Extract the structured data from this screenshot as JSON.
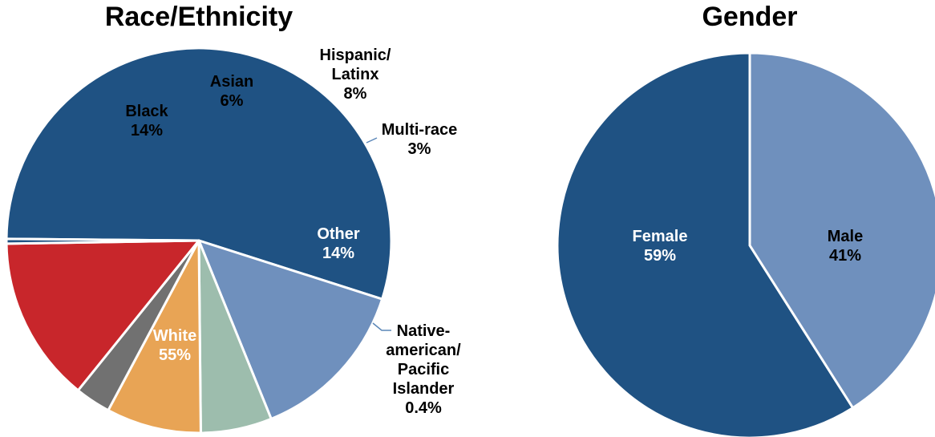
{
  "chart_data": [
    {
      "type": "pie",
      "title": "Race/Ethnicity",
      "slices": [
        {
          "name": "White",
          "value": 55,
          "value_label": "55%",
          "color": "#1f5283",
          "label_color": "#ffffff"
        },
        {
          "name": "Black",
          "value": 14,
          "value_label": "14%",
          "color": "#6f90bd",
          "label_color": "#000000"
        },
        {
          "name": "Asian",
          "value": 6,
          "value_label": "6%",
          "color": "#9dbdad",
          "label_color": "#000000"
        },
        {
          "name": "Hispanic/ Latinx",
          "value": 8,
          "value_label": "8%",
          "color": "#e8a455",
          "label_color": "#000000"
        },
        {
          "name": "Multi-race",
          "value": 3,
          "value_label": "3%",
          "color": "#717171",
          "label_color": "#000000"
        },
        {
          "name": "Other",
          "value": 14,
          "value_label": "14%",
          "color": "#c8262b",
          "label_color": "#ffffff"
        },
        {
          "name": "Native-american/ Pacific Islander",
          "value": 0.4,
          "value_label": "0.4%",
          "color": "#1f5283",
          "label_color": "#000000"
        }
      ]
    },
    {
      "type": "pie",
      "title": "Gender",
      "slices": [
        {
          "name": "Female",
          "value": 59,
          "value_label": "59%",
          "color": "#1f5283",
          "label_color": "#ffffff"
        },
        {
          "name": "Male",
          "value": 41,
          "value_label": "41%",
          "color": "#6f90bd",
          "label_color": "#000000"
        }
      ]
    }
  ]
}
